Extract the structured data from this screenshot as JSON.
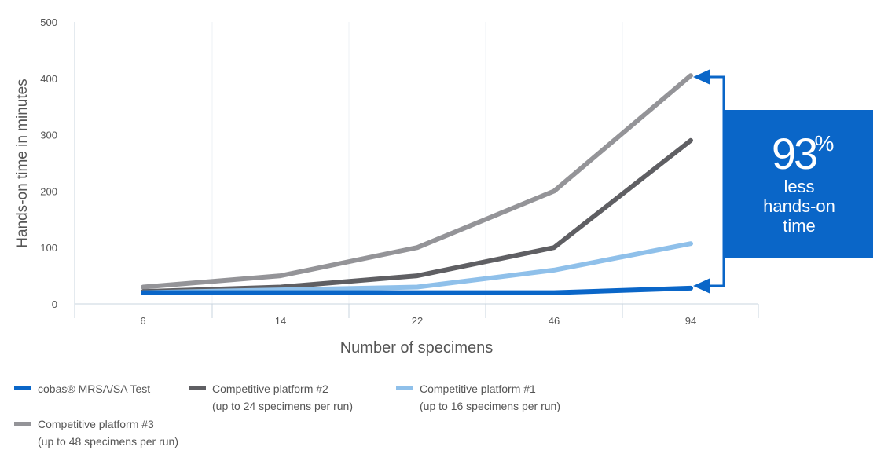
{
  "chart_data": {
    "type": "line",
    "categories": [
      "6",
      "14",
      "22",
      "46",
      "94"
    ],
    "xlabel": "Number of specimens",
    "ylabel": "Hands-on time in minutes",
    "ylim": [
      0,
      500
    ],
    "yticks": [
      "0",
      "100",
      "200",
      "300",
      "400",
      "500"
    ],
    "grid": "vertical",
    "legend_position": "bottom",
    "series": [
      {
        "name": "cobas® MRSA/SA Test",
        "sub": "",
        "color": "#0a66c8",
        "values": [
          20,
          20,
          20,
          20,
          28
        ]
      },
      {
        "name": "Competitive platform #2",
        "sub": "(up to 24 specimens per run)",
        "color": "#5f5f63",
        "values": [
          22,
          30,
          50,
          100,
          290
        ]
      },
      {
        "name": "Competitive platform #1",
        "sub": "(up to 16 specimens per run)",
        "color": "#8fc0ea",
        "values": [
          20,
          25,
          30,
          60,
          107
        ]
      },
      {
        "name": "Competitive platform #3",
        "sub": "(up to 48 specimens per run)",
        "color": "#949498",
        "values": [
          30,
          50,
          100,
          200,
          405
        ]
      }
    ],
    "annotation": {
      "big": "93",
      "unit": "%",
      "line1": "less",
      "line2": "hands-on",
      "line3": "time",
      "color": "#0a66c8"
    }
  }
}
